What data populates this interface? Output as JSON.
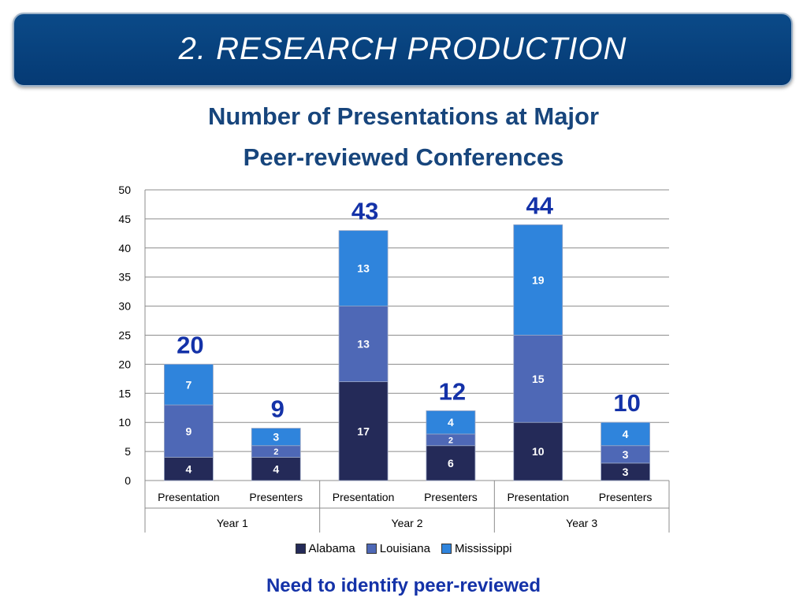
{
  "header": {
    "title": "2. RESEARCH PRODUCTION"
  },
  "footnote": "Need to identify peer-reviewed",
  "colors": {
    "banner": "#084384",
    "title_text": "#17457c",
    "total_text": "#1432a8",
    "alabama": "#242a58",
    "louisiana": "#4e68b6",
    "mississippi": "#2f84dc"
  },
  "chart_data": {
    "type": "bar",
    "stacked": true,
    "title": "Number of Presentations at Major Peer-reviewed Conferences",
    "title_lines": [
      "Number of Presentations at Major",
      "Peer-reviewed Conferences"
    ],
    "categories": [
      "Presentation",
      "Presenters",
      "Presentation",
      "Presenters",
      "Presentation",
      "Presenters"
    ],
    "groups": [
      {
        "label": "Year 1",
        "span": 2
      },
      {
        "label": "Year 2",
        "span": 2
      },
      {
        "label": "Year 3",
        "span": 2
      }
    ],
    "series": [
      {
        "name": "Alabama",
        "values": [
          4,
          4,
          17,
          6,
          10,
          3
        ]
      },
      {
        "name": "Louisiana",
        "values": [
          9,
          2,
          13,
          2,
          15,
          3
        ]
      },
      {
        "name": "Mississippi",
        "values": [
          7,
          3,
          13,
          4,
          19,
          4
        ]
      }
    ],
    "totals": [
      20,
      9,
      43,
      12,
      44,
      10
    ],
    "ylim": [
      0,
      50
    ],
    "yticks": [
      0,
      5,
      10,
      15,
      20,
      25,
      30,
      35,
      40,
      45,
      50
    ],
    "grid": true,
    "legend": "bottom"
  }
}
